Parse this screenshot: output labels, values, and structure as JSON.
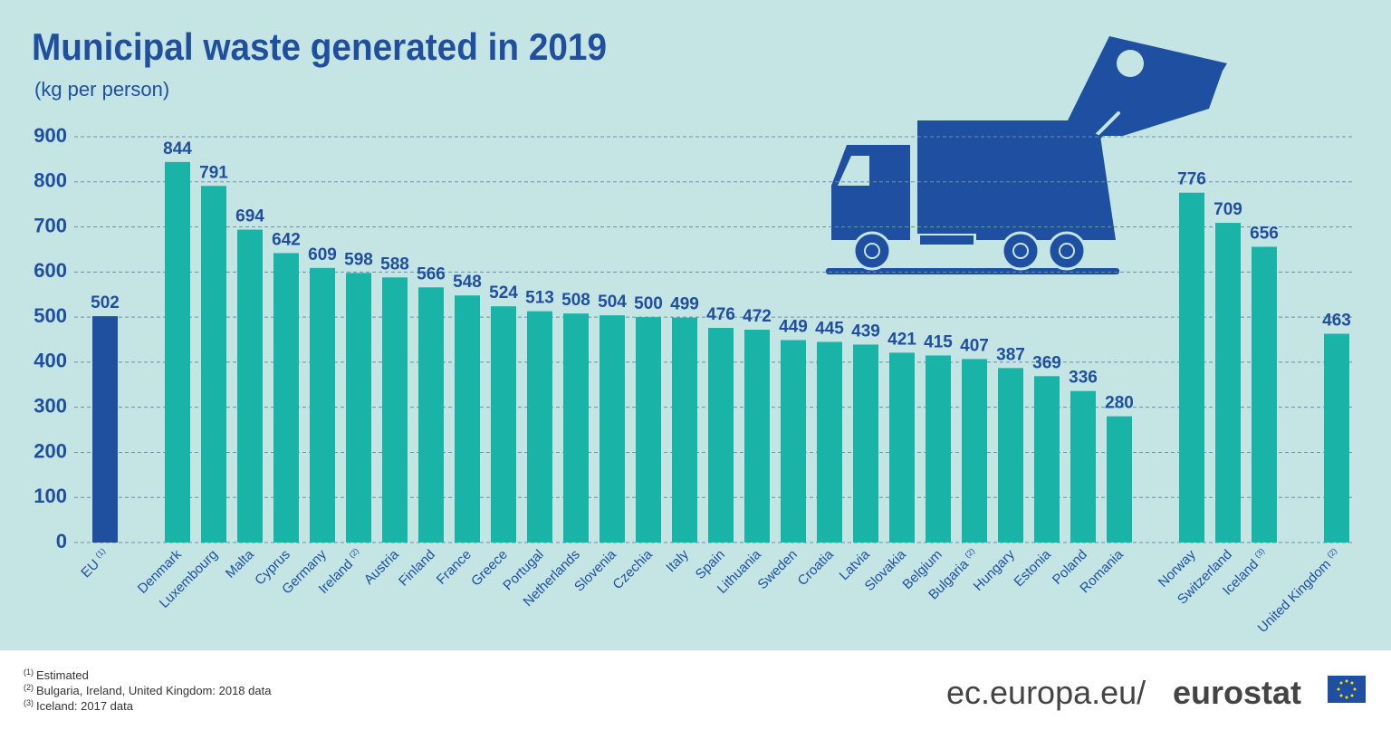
{
  "chart_data": {
    "type": "bar",
    "title": "Municipal waste generated in 2019",
    "subtitle": "(kg per person)",
    "categories": [
      "EU",
      null,
      "Denmark",
      "Luxembourg",
      "Malta",
      "Cyprus",
      "Germany",
      "Ireland",
      "Austria",
      "Finland",
      "France",
      "Greece",
      "Portugal",
      "Netherlands",
      "Slovenia",
      "Czechia",
      "Italy",
      "Spain",
      "Lithuania",
      "Sweden",
      "Croatia",
      "Latvia",
      "Slovakia",
      "Belgium",
      "Bulgaria",
      "Hungary",
      "Estonia",
      "Poland",
      "Romania",
      null,
      "Norway",
      "Switzerland",
      "Iceland",
      null,
      "United Kingdom"
    ],
    "category_notes": [
      "(1)",
      null,
      null,
      null,
      null,
      null,
      null,
      "(2)",
      null,
      null,
      null,
      null,
      null,
      null,
      null,
      null,
      null,
      null,
      null,
      null,
      null,
      null,
      null,
      null,
      "(2)",
      null,
      null,
      null,
      null,
      null,
      null,
      null,
      "(3)",
      null,
      "(2)"
    ],
    "values": [
      502,
      null,
      844,
      791,
      694,
      642,
      609,
      598,
      588,
      566,
      548,
      524,
      513,
      508,
      504,
      500,
      499,
      476,
      472,
      449,
      445,
      439,
      421,
      415,
      407,
      387,
      369,
      336,
      280,
      null,
      776,
      709,
      656,
      null,
      463
    ],
    "colors": [
      "#1f4f9e",
      null,
      "#1ab3a8",
      "#1ab3a8",
      "#1ab3a8",
      "#1ab3a8",
      "#1ab3a8",
      "#1ab3a8",
      "#1ab3a8",
      "#1ab3a8",
      "#1ab3a8",
      "#1ab3a8",
      "#1ab3a8",
      "#1ab3a8",
      "#1ab3a8",
      "#1ab3a8",
      "#1ab3a8",
      "#1ab3a8",
      "#1ab3a8",
      "#1ab3a8",
      "#1ab3a8",
      "#1ab3a8",
      "#1ab3a8",
      "#1ab3a8",
      "#1ab3a8",
      "#1ab3a8",
      "#1ab3a8",
      "#1ab3a8",
      "#1ab3a8",
      null,
      "#1ab3a8",
      "#1ab3a8",
      "#1ab3a8",
      null,
      "#1ab3a8"
    ],
    "ylim": [
      0,
      900
    ],
    "yticks": [
      0,
      100,
      200,
      300,
      400,
      500,
      600,
      700,
      800,
      900
    ],
    "grid": true
  },
  "footnotes": [
    {
      "marker": "(1)",
      "text": "Estimated"
    },
    {
      "marker": "(2)",
      "text": "Bulgaria, Ireland, United Kingdom: 2018 data"
    },
    {
      "marker": "(3)",
      "text": "Iceland: 2017 data"
    }
  ],
  "source": {
    "domain": "ec.europa.eu/",
    "brand": "eurostat"
  }
}
